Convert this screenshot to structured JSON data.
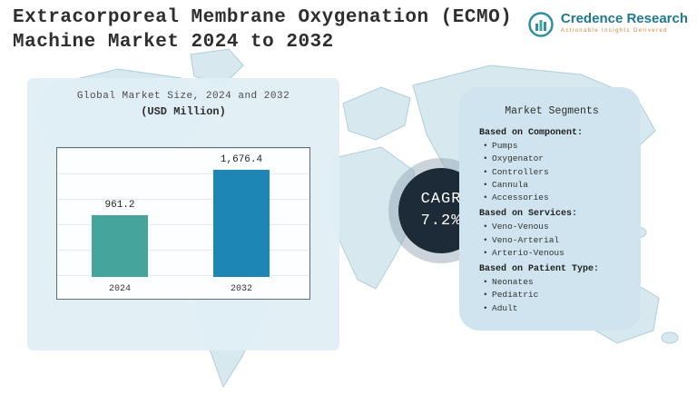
{
  "header": {
    "title_line1": "Extracorporeal Membrane Oxygenation (ECMO)",
    "title_line2": "Machine Market  2024 to 2032"
  },
  "brand": {
    "name": "Credence Research",
    "tagline": "Actionable Insights Delivered"
  },
  "chart_data": {
    "type": "bar",
    "title": "Global Market Size, 2024 and 2032",
    "subtitle": "(USD Million)",
    "categories": [
      "2024",
      "2032"
    ],
    "values": [
      961.2,
      1676.4
    ],
    "value_labels": [
      "961.2",
      "1,676.4"
    ],
    "bar_colors": [
      "#45a59d",
      "#1e86b5"
    ],
    "xlabel": "",
    "ylabel": "",
    "ylim": [
      0,
      1800
    ],
    "grid": true,
    "legend": false
  },
  "cagr": {
    "label": "CAGR",
    "value": "7.2%"
  },
  "segments": {
    "title": "Market Segments",
    "groups": [
      {
        "heading": "Based on Component:",
        "items": [
          "Pumps",
          "Oxygenator",
          "Controllers",
          "Cannula",
          "Accessories"
        ]
      },
      {
        "heading": "Based on Services:",
        "items": [
          "Veno-Venous",
          "Veno-Arterial",
          "Arterio-Venous"
        ]
      },
      {
        "heading": "Based on Patient Type:",
        "items": [
          "Neonates",
          "Pediatric",
          "Adult"
        ]
      }
    ]
  },
  "colors": {
    "accent_teal": "#45a59d",
    "accent_blue": "#1e86b5",
    "cagr_circle": "#1d2b38",
    "panel_light": "#e1eff6",
    "panel_segments": "#cfe4ee",
    "map_fill": "#d7e8ee",
    "brand_teal": "#21798f",
    "brand_orange": "#e08030"
  }
}
